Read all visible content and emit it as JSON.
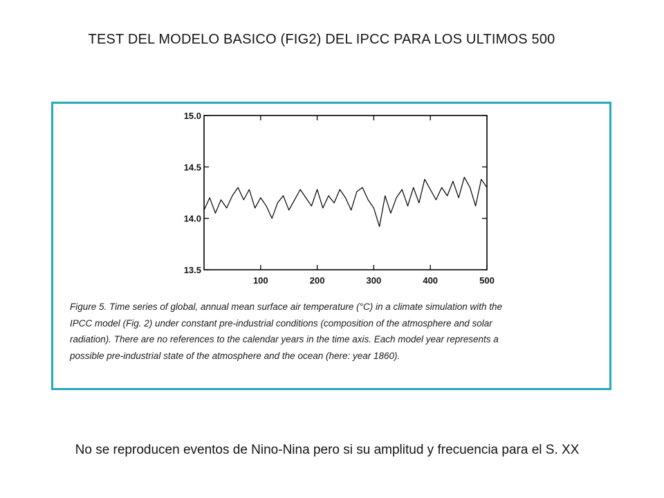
{
  "slide": {
    "title": "TEST DEL MODELO  BASICO (FIG2) DEL IPCC PARA LOS ULTIMOS  500",
    "footer": "No se reproducen eventos de Nino-Nina pero si su amplitud y frecuencia para el S. XX",
    "frame_color": "#23aabb"
  },
  "figure": {
    "caption_lines": [
      "Figure 5. Time series of global, annual mean surface air temperature (°C) in a climate simulation with the",
      "IPCC model (Fig. 2) under constant pre-industrial conditions (composition of the atmosphere and solar",
      "radiation). There are no references to the calendar years in the time axis. Each model year represents a",
      "possible pre-industrial state of the atmosphere and the ocean (here: year 1860)."
    ]
  },
  "chart_data": {
    "type": "line",
    "title": "",
    "xlabel": "",
    "ylabel": "",
    "xlim": [
      0,
      500
    ],
    "ylim": [
      13.5,
      15.0
    ],
    "x_ticks": [
      100,
      200,
      300,
      400,
      500
    ],
    "x_tick_labels": [
      "100",
      "200",
      "300",
      "400",
      "500"
    ],
    "y_ticks": [
      15.0,
      14.5,
      14.0,
      13.5
    ],
    "y_tick_labels": [
      "15.0",
      "14.5",
      "14.0",
      "13.5"
    ],
    "grid": false,
    "series": [
      {
        "color": "#000000",
        "x": [
          0,
          10,
          20,
          30,
          40,
          50,
          60,
          70,
          80,
          90,
          100,
          110,
          120,
          130,
          140,
          150,
          160,
          170,
          180,
          190,
          200,
          210,
          220,
          230,
          240,
          250,
          260,
          270,
          280,
          290,
          300,
          310,
          320,
          330,
          340,
          350,
          360,
          370,
          380,
          390,
          400,
          410,
          420,
          430,
          440,
          450,
          460,
          470,
          480,
          490,
          500
        ],
        "values": [
          14.08,
          14.2,
          14.05,
          14.18,
          14.1,
          14.22,
          14.3,
          14.18,
          14.28,
          14.1,
          14.2,
          14.12,
          14.0,
          14.15,
          14.22,
          14.08,
          14.18,
          14.28,
          14.2,
          14.12,
          14.28,
          14.1,
          14.22,
          14.15,
          14.28,
          14.2,
          14.08,
          14.26,
          14.3,
          14.18,
          14.1,
          13.92,
          14.22,
          14.05,
          14.2,
          14.28,
          14.12,
          14.3,
          14.15,
          14.38,
          14.28,
          14.18,
          14.3,
          14.22,
          14.36,
          14.2,
          14.4,
          14.3,
          14.12,
          14.38,
          14.3
        ]
      }
    ]
  }
}
